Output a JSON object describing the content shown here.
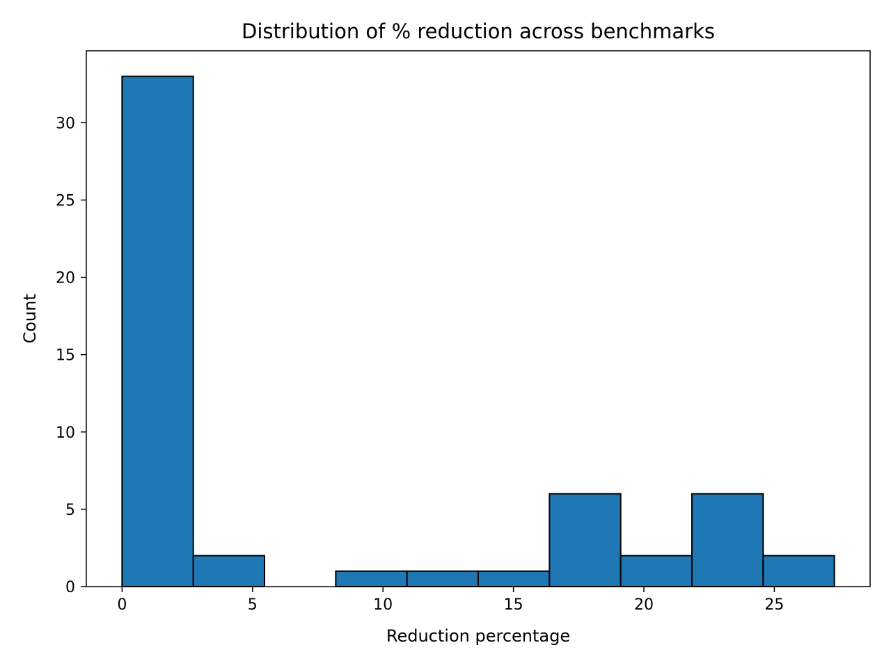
{
  "chart_data": {
    "type": "bar",
    "title": "Distribution of % reduction across benchmarks",
    "xlabel": "Reduction percentage",
    "ylabel": "Count",
    "bar_color": "#1f77b4",
    "edge_color": "#000000",
    "bin_edges": [
      0,
      2.73,
      5.46,
      8.19,
      10.92,
      13.65,
      16.38,
      19.11,
      21.84,
      24.57,
      27.3
    ],
    "values": [
      33,
      2,
      0,
      1,
      1,
      1,
      6,
      2,
      6,
      2
    ],
    "xlim": [
      -1.37,
      28.67
    ],
    "ylim": [
      0,
      34.65
    ],
    "xticks": [
      0,
      5,
      10,
      15,
      20,
      25
    ],
    "yticks": [
      0,
      5,
      10,
      15,
      20,
      25,
      30
    ],
    "grid": false
  }
}
